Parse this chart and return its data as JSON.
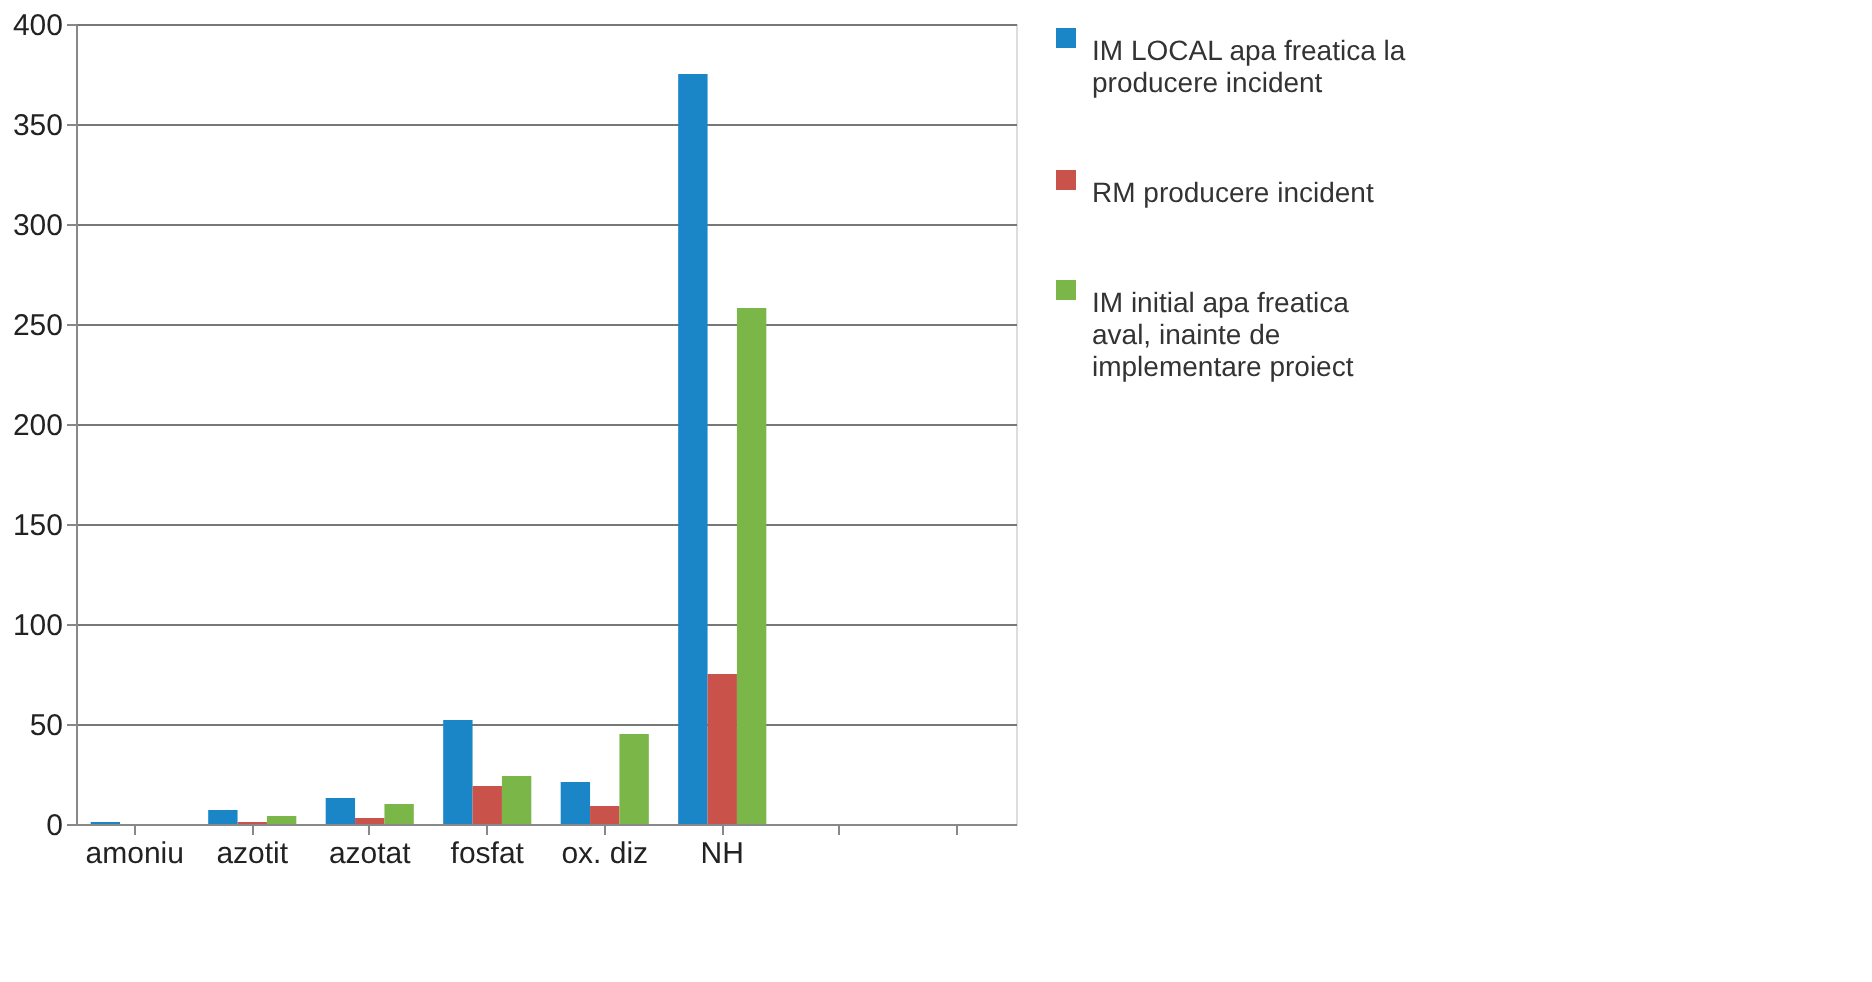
{
  "chart_data": {
    "type": "bar",
    "categories": [
      "amoniu",
      "azotit",
      "azotat",
      "fosfat",
      "ox. diz",
      "NH",
      null,
      null
    ],
    "series": [
      {
        "name": "IM LOCAL apa freatica la producere incident",
        "color": "#1a86c8",
        "values": [
          1,
          7,
          13,
          52,
          21,
          375,
          null,
          null
        ]
      },
      {
        "name": "RM producere incident",
        "color": "#c9524a",
        "values": [
          0,
          1,
          3,
          19,
          9,
          75,
          null,
          null
        ]
      },
      {
        "name": "IM initial apa freatica aval, inainte de implementare proiect",
        "color": "#7ab648",
        "values": [
          0,
          4,
          10,
          24,
          45,
          258,
          null,
          null
        ]
      }
    ],
    "ylim": [
      0,
      400
    ],
    "yticks": [
      0,
      50,
      100,
      150,
      200,
      250,
      300,
      350,
      400
    ],
    "grid": "y",
    "legend": "right"
  }
}
